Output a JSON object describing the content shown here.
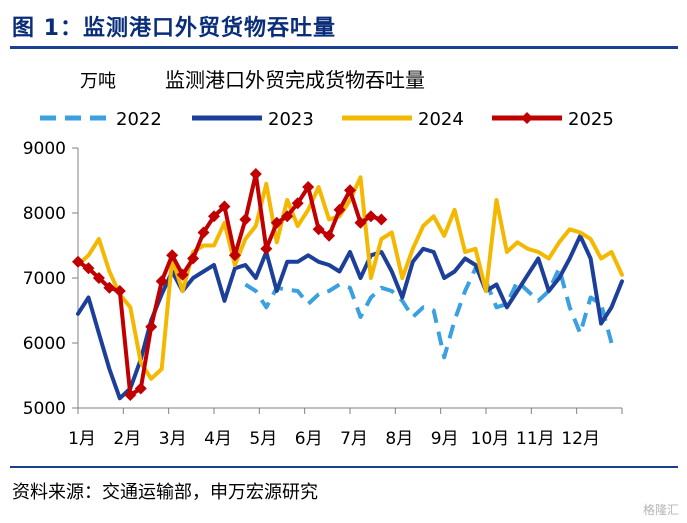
{
  "figure": {
    "title": "图 1：监测港口外贸货物吞吐量",
    "source": "资料来源：交通运输部，申万宏源研究",
    "watermark": "格隆汇"
  },
  "chart_data": {
    "type": "line",
    "title": "监测港口外贸完成货物吞吐量",
    "unit_label": "万吨",
    "ylim": [
      5000,
      9000
    ],
    "yticks": [
      5000,
      6000,
      7000,
      8000,
      9000
    ],
    "x_labels": [
      "1月",
      "2月",
      "3月",
      "4月",
      "5月",
      "6月",
      "7月",
      "8月",
      "9月",
      "10月",
      "11月",
      "12月"
    ],
    "x_unit": "week of year",
    "legend_position": "top",
    "grid": false,
    "series": [
      {
        "name": "2022",
        "color": "#3aa0e0",
        "style": "dashed",
        "marker": "none",
        "x": [
          17,
          18,
          19,
          20,
          21,
          22,
          23,
          24,
          25,
          26,
          27,
          28,
          29,
          30,
          31,
          32,
          33,
          34,
          35,
          36,
          37,
          38,
          39,
          40,
          41,
          42,
          43,
          44,
          45,
          46,
          47,
          48,
          49,
          50,
          51,
          52
        ],
        "values": [
          6900,
          6800,
          6550,
          6850,
          6820,
          6800,
          6600,
          6750,
          6800,
          6900,
          6850,
          6400,
          6700,
          6850,
          6800,
          6650,
          6400,
          6550,
          6500,
          5780,
          6350,
          6800,
          7150,
          6950,
          6550,
          6600,
          6950,
          6800,
          6650,
          6800,
          7150,
          6550,
          6150,
          6700,
          6600,
          6000
        ]
      },
      {
        "name": "2023",
        "color": "#1c3f99",
        "style": "solid",
        "marker": "none",
        "x": [
          1,
          2,
          3,
          4,
          5,
          6,
          7,
          8,
          9,
          10,
          11,
          12,
          13,
          14,
          15,
          16,
          17,
          18,
          19,
          20,
          21,
          22,
          23,
          24,
          25,
          26,
          27,
          28,
          29,
          30,
          31,
          32,
          33,
          34,
          35,
          36,
          37,
          38,
          39,
          40,
          41,
          42,
          43,
          44,
          45,
          46,
          47,
          48,
          49,
          50,
          51,
          52,
          53
        ],
        "values": [
          6450,
          6700,
          6150,
          5600,
          5150,
          5300,
          5750,
          6350,
          6750,
          7100,
          6800,
          7000,
          7100,
          7200,
          6650,
          7150,
          7200,
          7000,
          7400,
          6800,
          7250,
          7250,
          7350,
          7250,
          7200,
          7100,
          7400,
          7000,
          7350,
          7400,
          7100,
          6700,
          7250,
          7450,
          7400,
          7000,
          7100,
          7300,
          7200,
          6800,
          6900,
          6550,
          6800,
          7050,
          7300,
          6800,
          7000,
          7300,
          7650,
          7300,
          6300,
          6550,
          6950
        ]
      },
      {
        "name": "2024",
        "color": "#f4b800",
        "style": "solid",
        "marker": "none",
        "x": [
          1,
          2,
          3,
          4,
          5,
          6,
          7,
          8,
          9,
          10,
          11,
          12,
          13,
          14,
          15,
          16,
          17,
          18,
          19,
          20,
          21,
          22,
          23,
          24,
          25,
          26,
          27,
          28,
          29,
          30,
          31,
          32,
          33,
          34,
          35,
          36,
          37,
          38,
          39,
          40,
          41,
          42,
          43,
          44,
          45,
          46,
          47,
          48,
          49,
          50,
          51,
          52,
          53
        ],
        "values": [
          7200,
          7350,
          7600,
          7100,
          6750,
          6550,
          5700,
          5450,
          5600,
          7300,
          6800,
          7400,
          7500,
          7500,
          7850,
          7200,
          7600,
          7800,
          8450,
          7550,
          8200,
          7800,
          8050,
          8400,
          7900,
          7950,
          8200,
          8550,
          7000,
          7600,
          7700,
          7000,
          7450,
          7800,
          7950,
          7650,
          8050,
          7400,
          7450,
          6800,
          8200,
          7400,
          7550,
          7450,
          7400,
          7300,
          7550,
          7750,
          7700,
          7600,
          7300,
          7400,
          7050
        ]
      },
      {
        "name": "2025",
        "color": "#c00000",
        "style": "solid",
        "marker": "diamond",
        "x": [
          1,
          2,
          3,
          4,
          5,
          6,
          7,
          8,
          9,
          10,
          11,
          12,
          13,
          14,
          15,
          16,
          17,
          18,
          19,
          20,
          21,
          22,
          23,
          24,
          25,
          26,
          27,
          28,
          29,
          30
        ],
        "values": [
          7250,
          7150,
          7000,
          6850,
          6800,
          5200,
          5300,
          6250,
          6950,
          7350,
          7050,
          7300,
          7700,
          7950,
          8100,
          7350,
          7900,
          8600,
          7450,
          7850,
          7950,
          8150,
          8400,
          7750,
          7650,
          8050,
          8350,
          7850,
          7950,
          7900
        ]
      }
    ]
  }
}
